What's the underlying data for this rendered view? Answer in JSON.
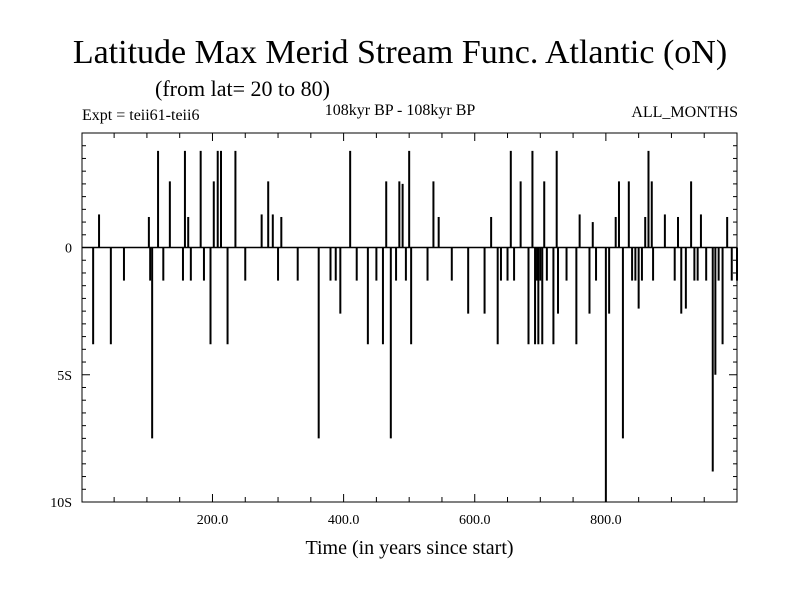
{
  "chart_data": {
    "type": "bar",
    "title": "Latitude Max Merid Stream Func. Atlantic (oN)",
    "subtitle": "(from lat= 20 to 80)",
    "experiment_label": "Expt = teii61-teii6",
    "period_label": "108kyr BP - 108kyr BP",
    "months_label": "ALL_MONTHS",
    "xlabel": "Time (in years since start)",
    "ylabel": "",
    "xlim": [
      1,
      1000
    ],
    "ylim": [
      -10,
      4.5
    ],
    "x_ticks": [
      {
        "value": 200,
        "label": "200.0"
      },
      {
        "value": 400,
        "label": "400.0"
      },
      {
        "value": 600,
        "label": "600.0"
      },
      {
        "value": 800,
        "label": "800.0"
      }
    ],
    "y_ticks": [
      {
        "value": 0,
        "label": "0"
      },
      {
        "value": -5,
        "label": "5S"
      },
      {
        "value": -10,
        "label": "10S"
      }
    ],
    "x": [
      18,
      27,
      45,
      65,
      103,
      105,
      108,
      117,
      125,
      135,
      155,
      158,
      163,
      167,
      182,
      187,
      197,
      202,
      208,
      213,
      223,
      235,
      250,
      275,
      285,
      292,
      300,
      305,
      330,
      362,
      380,
      388,
      395,
      410,
      420,
      437,
      450,
      460,
      465,
      472,
      480,
      485,
      490,
      495,
      500,
      503,
      528,
      537,
      545,
      565,
      590,
      615,
      625,
      635,
      640,
      650,
      655,
      660,
      670,
      682,
      688,
      692,
      695,
      697,
      700,
      703,
      706,
      710,
      720,
      725,
      727,
      740,
      755,
      760,
      775,
      780,
      785,
      800,
      805,
      815,
      820,
      826,
      835,
      840,
      845,
      850,
      855,
      860,
      865,
      870,
      872,
      890,
      905,
      910,
      915,
      922,
      930,
      935,
      940,
      945,
      953,
      963,
      967,
      972,
      978,
      985,
      992,
      1000
    ],
    "values": [
      -3.8,
      1.3,
      -3.8,
      -1.3,
      1.2,
      -1.3,
      -7.5,
      3.8,
      -1.3,
      2.6,
      -1.3,
      3.8,
      1.2,
      -1.3,
      3.8,
      -1.3,
      -3.8,
      2.6,
      3.8,
      3.8,
      -3.8,
      3.8,
      -1.3,
      1.3,
      2.6,
      1.3,
      -1.3,
      1.2,
      -1.3,
      -7.5,
      -1.3,
      -1.3,
      -2.6,
      3.8,
      -1.3,
      -3.8,
      -1.3,
      -3.8,
      2.6,
      -7.5,
      -1.3,
      2.6,
      2.5,
      -1.3,
      3.8,
      -3.8,
      -1.3,
      2.6,
      1.2,
      -1.3,
      -2.6,
      -2.6,
      1.2,
      -3.8,
      -1.3,
      -1.3,
      3.8,
      -1.3,
      2.6,
      -3.8,
      3.8,
      -3.8,
      -1.3,
      -3.8,
      -1.3,
      -3.8,
      2.6,
      -1.3,
      -3.8,
      3.8,
      -2.6,
      -1.3,
      -3.8,
      1.3,
      -2.6,
      1.0,
      -1.3,
      -10,
      -2.6,
      1.2,
      2.6,
      -7.5,
      2.6,
      -1.3,
      -1.3,
      -2.4,
      -1.3,
      1.2,
      3.8,
      2.6,
      -1.3,
      1.3,
      -1.3,
      1.2,
      -2.6,
      -2.4,
      2.6,
      -1.3,
      -1.3,
      1.3,
      -1.3,
      -8.8,
      -5.0,
      -1.3,
      -3.8,
      1.2,
      -1.3,
      -1.3
    ]
  }
}
